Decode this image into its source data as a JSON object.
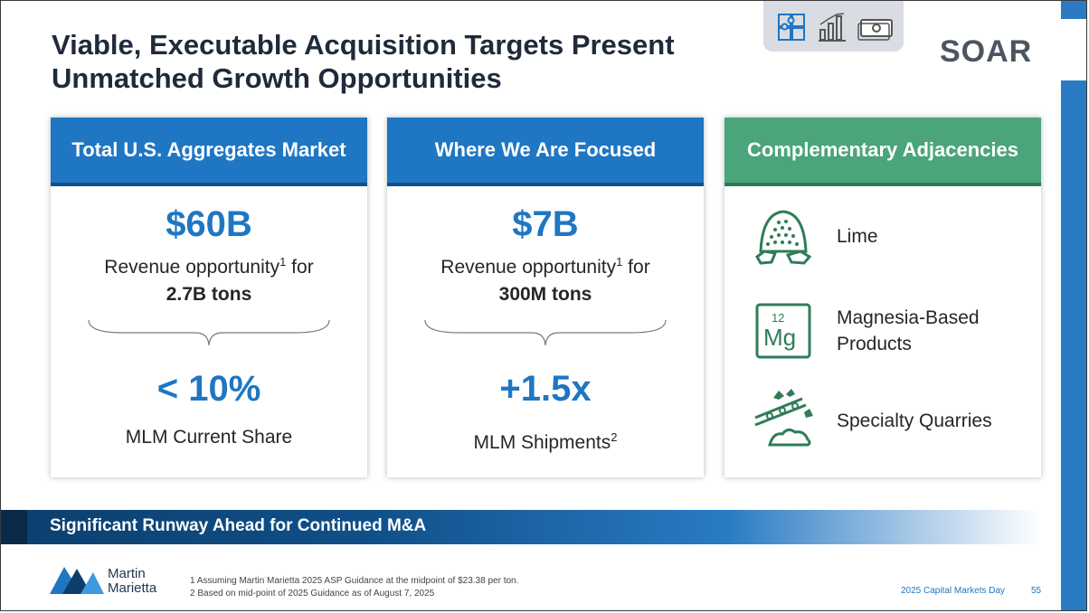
{
  "slide": {
    "title_line1": "Viable, Executable Acquisition Targets Present",
    "title_line2": "Unmatched Growth Opportunities",
    "brand_logo_text": "SOAR",
    "header_icons": [
      "puzzle-icon",
      "bar-chart-icon",
      "money-icon"
    ]
  },
  "panels": {
    "market": {
      "header": "Total U.S. Aggregates Market",
      "big_value": "$60B",
      "desc_main": "Revenue opportunity",
      "desc_sup": "1",
      "desc_tail": " for",
      "desc_bold": "2.7B tons",
      "stat_value": "< 10%",
      "stat_label": "MLM Current Share"
    },
    "focus": {
      "header": "Where We Are Focused",
      "big_value": "$7B",
      "desc_main": "Revenue opportunity",
      "desc_sup": "1",
      "desc_tail": " for",
      "desc_bold": "300M tons",
      "stat_value": "+1.5x",
      "stat_label": "MLM Shipments",
      "stat_sup": "2"
    },
    "adjacencies": {
      "header": "Complementary Adjacencies",
      "items": [
        {
          "label": "Lime",
          "icon": "lime-pile-icon"
        },
        {
          "label_line1": "Magnesia-Based",
          "label_line2": "Products",
          "icon": "magnesium-element-icon",
          "element_number": "12",
          "element_symbol": "Mg"
        },
        {
          "label": "Specialty Quarries",
          "icon": "quarry-conveyor-icon"
        }
      ]
    }
  },
  "banner": {
    "text": "Significant Runway Ahead for Continued M&A"
  },
  "footer": {
    "company_line1": "Martin",
    "company_line2": "Marietta",
    "footnote1": "1  Assuming Martin Marietta 2025 ASP Guidance at the midpoint of $23.38 per ton.",
    "footnote2": "2  Based on mid-point of 2025 Guidance as of August 7, 2025",
    "event": "2025 Capital Markets Day",
    "page": "55"
  },
  "colors": {
    "accent_blue": "#1f76c2",
    "accent_green": "#4aa57a",
    "title_text": "#1f2a3a",
    "icon_green": "#2f7d57"
  }
}
